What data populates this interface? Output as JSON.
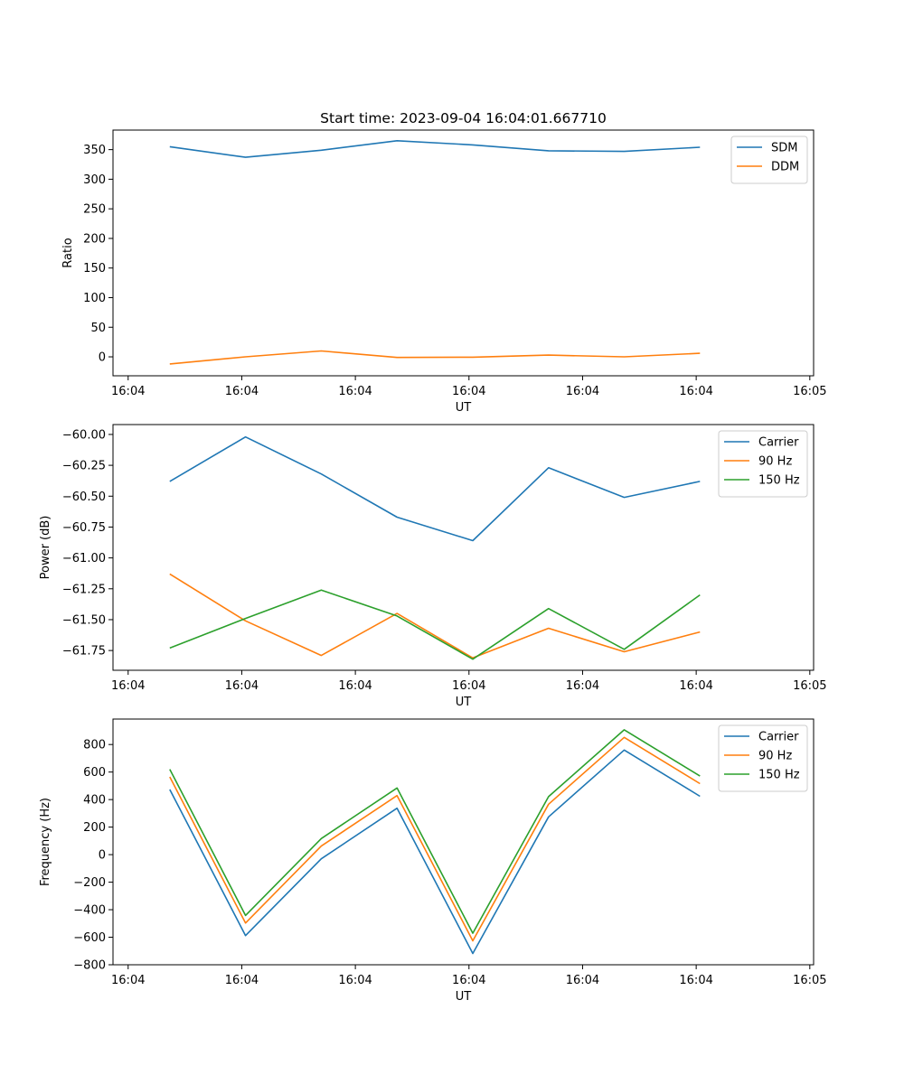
{
  "chart_data": [
    {
      "type": "line",
      "title": "Start time: 2023-09-04 16:04:01.667710",
      "xlabel": "UT",
      "ylabel": "Ratio",
      "xlim": [
        0,
        9.25
      ],
      "ylim": [
        -32,
        383
      ],
      "x": [
        0.75,
        1.75,
        2.75,
        3.75,
        4.75,
        5.75,
        6.75,
        7.75
      ],
      "xticks": [
        0.2,
        1.7,
        3.2,
        4.7,
        6.2,
        7.7,
        9.2
      ],
      "xticklabels": [
        "16:04",
        "16:04",
        "16:04",
        "16:04",
        "16:04",
        "16:04",
        "16:05"
      ],
      "yticks": [
        0,
        50,
        100,
        150,
        200,
        250,
        300,
        350
      ],
      "yticklabels": [
        "0",
        "50",
        "100",
        "150",
        "200",
        "250",
        "300",
        "350"
      ],
      "legend_position": "top-right",
      "series": [
        {
          "name": "SDM",
          "color": "#1f77b4",
          "values": [
            355,
            337,
            349,
            365,
            358,
            348,
            347,
            354
          ]
        },
        {
          "name": "DDM",
          "color": "#ff7f0e",
          "values": [
            -12,
            0,
            10,
            -1,
            -0.5,
            3,
            0,
            6
          ]
        }
      ]
    },
    {
      "type": "line",
      "title": "",
      "xlabel": "UT",
      "ylabel": "Power (dB)",
      "xlim": [
        0,
        9.25
      ],
      "ylim": [
        -61.91,
        -59.92
      ],
      "x": [
        0.75,
        1.75,
        2.75,
        3.75,
        4.75,
        5.75,
        6.75,
        7.75
      ],
      "xticks": [
        0.2,
        1.7,
        3.2,
        4.7,
        6.2,
        7.7,
        9.2
      ],
      "xticklabels": [
        "16:04",
        "16:04",
        "16:04",
        "16:04",
        "16:04",
        "16:04",
        "16:05"
      ],
      "yticks": [
        -61.75,
        -61.5,
        -61.25,
        -61.0,
        -60.75,
        -60.5,
        -60.25,
        -60.0
      ],
      "yticklabels": [
        "−61.75",
        "−61.50",
        "−61.25",
        "−61.00",
        "−60.75",
        "−60.50",
        "−60.25",
        "−60.00"
      ],
      "legend_position": "top-right",
      "series": [
        {
          "name": "Carrier",
          "color": "#1f77b4",
          "values": [
            -60.38,
            -60.02,
            -60.32,
            -60.67,
            -60.86,
            -60.27,
            -60.51,
            -60.38
          ]
        },
        {
          "name": "90 Hz",
          "color": "#ff7f0e",
          "values": [
            -61.13,
            -61.51,
            -61.79,
            -61.45,
            -61.81,
            -61.57,
            -61.76,
            -61.6
          ]
        },
        {
          "name": "150 Hz",
          "color": "#2ca02c",
          "values": [
            -61.73,
            -61.49,
            -61.26,
            -61.47,
            -61.82,
            -61.41,
            -61.74,
            -61.3
          ]
        }
      ]
    },
    {
      "type": "line",
      "title": "",
      "xlabel": "UT",
      "ylabel": "Frequency (Hz)",
      "xlim": [
        0,
        9.25
      ],
      "ylim": [
        -800,
        985
      ],
      "x": [
        0.75,
        1.75,
        2.75,
        3.75,
        4.75,
        5.75,
        6.75,
        7.75
      ],
      "xticks": [
        0.2,
        1.7,
        3.2,
        4.7,
        6.2,
        7.7,
        9.2
      ],
      "xticklabels": [
        "16:04",
        "16:04",
        "16:04",
        "16:04",
        "16:04",
        "16:04",
        "16:05"
      ],
      "yticks": [
        -800,
        -600,
        -400,
        -200,
        0,
        200,
        400,
        600,
        800
      ],
      "yticklabels": [
        "−800",
        "−600",
        "−400",
        "−200",
        "0",
        "200",
        "400",
        "600",
        "800"
      ],
      "legend_position": "top-right",
      "series": [
        {
          "name": "Carrier",
          "color": "#1f77b4",
          "values": [
            473,
            -588,
            -30,
            337,
            -718,
            274,
            760,
            424
          ]
        },
        {
          "name": "90 Hz",
          "color": "#ff7f0e",
          "values": [
            565,
            -497,
            62,
            429,
            -626,
            366,
            852,
            516
          ]
        },
        {
          "name": "150 Hz",
          "color": "#2ca02c",
          "values": [
            620,
            -442,
            117,
            484,
            -571,
            421,
            907,
            571
          ]
        }
      ]
    }
  ]
}
